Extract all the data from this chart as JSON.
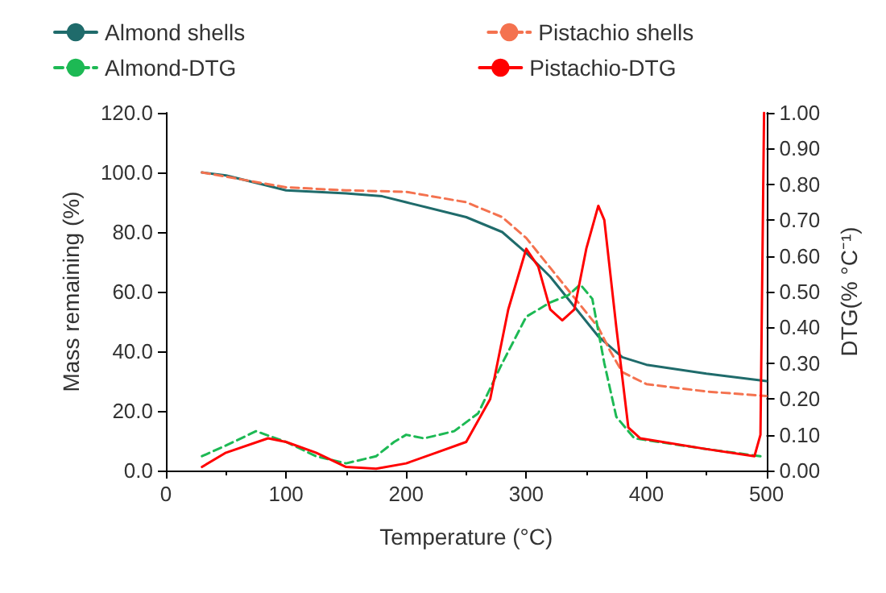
{
  "chart_data": {
    "type": "line",
    "xlabel": "Temperature (°C)",
    "ylabel": "Mass remaining (%)",
    "y2label": "DTG(% °C⁻¹)",
    "legend": "top",
    "grid": false,
    "marker": "none",
    "xlim": [
      0,
      500
    ],
    "xticks": [
      0,
      100,
      200,
      300,
      400,
      500
    ],
    "ylim": [
      0,
      120
    ],
    "yticks": [
      {
        "value": 0,
        "label": "0.0"
      },
      {
        "value": 20,
        "label": "20.0"
      },
      {
        "value": 40,
        "label": "40.0"
      },
      {
        "value": 60,
        "label": "60.0"
      },
      {
        "value": 80,
        "label": "80.0"
      },
      {
        "value": 100,
        "label": "100.0"
      },
      {
        "value": 120,
        "label": "120.0"
      }
    ],
    "y2lim": [
      0,
      1
    ],
    "y2ticks": [
      {
        "value": 0,
        "label": "0.00"
      },
      {
        "value": 0.1,
        "label": "0.10"
      },
      {
        "value": 0.2,
        "label": "0.20"
      },
      {
        "value": 0.3,
        "label": "0.30"
      },
      {
        "value": 0.4,
        "label": "0.40"
      },
      {
        "value": 0.5,
        "label": "0.50"
      },
      {
        "value": 0.6,
        "label": "0.60"
      },
      {
        "value": 0.7,
        "label": "0.70"
      },
      {
        "value": 0.8,
        "label": "0.80"
      },
      {
        "value": 0.9,
        "label": "0.90"
      },
      {
        "value": 1,
        "label": "1.00"
      }
    ],
    "series": [
      {
        "name": "Almond shells",
        "color": "#1f6b6b",
        "line_style": "solid",
        "x": [
          30,
          50,
          80,
          100,
          150,
          180,
          200,
          250,
          280,
          300,
          320,
          340,
          360,
          380,
          400,
          450,
          500
        ],
        "values": [
          100,
          99,
          96,
          94,
          93,
          92,
          90,
          85,
          80,
          73,
          65,
          55,
          45,
          38,
          35.5,
          32.5,
          30
        ]
      },
      {
        "name": "Pistachio shells",
        "color": "#f4724f",
        "line_style": "dashed",
        "x": [
          30,
          100,
          150,
          200,
          250,
          280,
          300,
          320,
          340,
          360,
          370,
          380,
          400,
          450,
          500
        ],
        "values": [
          100,
          95,
          94,
          93.5,
          90,
          85,
          78,
          68,
          58,
          48,
          40,
          33,
          29,
          26.5,
          25
        ]
      },
      {
        "name": "Almond-DTG",
        "color": "#1db954",
        "line_style": "dashed",
        "axis": "y2",
        "x": [
          30,
          50,
          75,
          100,
          125,
          150,
          175,
          190,
          200,
          215,
          240,
          260,
          280,
          300,
          320,
          335,
          345,
          355,
          365,
          375,
          390,
          450,
          495
        ],
        "values": [
          0.04,
          0.07,
          0.11,
          0.08,
          0.04,
          0.02,
          0.04,
          0.08,
          0.1,
          0.09,
          0.11,
          0.16,
          0.3,
          0.43,
          0.47,
          0.49,
          0.52,
          0.48,
          0.3,
          0.15,
          0.09,
          0.06,
          0.04
        ]
      },
      {
        "name": "Pistachio-DTG",
        "color": "#ff0000",
        "line_style": "solid",
        "axis": "y2",
        "x": [
          30,
          50,
          85,
          100,
          125,
          150,
          175,
          200,
          225,
          250,
          270,
          285,
          300,
          310,
          320,
          330,
          340,
          350,
          360,
          365,
          375,
          385,
          395,
          450,
          490,
          495,
          498
        ],
        "values": [
          0.01,
          0.05,
          0.09,
          0.08,
          0.05,
          0.01,
          0.005,
          0.02,
          0.05,
          0.08,
          0.2,
          0.45,
          0.62,
          0.57,
          0.45,
          0.42,
          0.45,
          0.62,
          0.74,
          0.7,
          0.4,
          0.12,
          0.09,
          0.06,
          0.04,
          0.1,
          1
        ]
      }
    ]
  }
}
